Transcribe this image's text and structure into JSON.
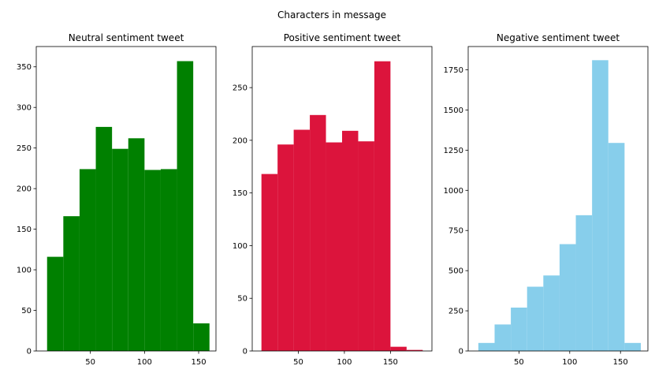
{
  "figure": {
    "suptitle": "Characters in message"
  },
  "chart_data": [
    {
      "type": "histogram",
      "title": "Neutral sentiment tweet",
      "color": "#008000",
      "xlim": [
        0,
        166
      ],
      "ylim": [
        0,
        375
      ],
      "xticks": [
        50,
        100,
        150
      ],
      "yticks": [
        0,
        50,
        100,
        150,
        200,
        250,
        300,
        350
      ],
      "bin_edges": [
        10,
        25,
        40,
        55,
        70,
        85,
        100,
        115,
        130,
        145,
        160
      ],
      "counts": [
        116,
        166,
        224,
        276,
        249,
        262,
        223,
        224,
        357,
        34
      ]
    },
    {
      "type": "histogram",
      "title": "Positive sentiment tweet",
      "color": "#DC143C",
      "xlim": [
        0,
        195
      ],
      "ylim": [
        0,
        289
      ],
      "xticks": [
        50,
        100,
        150
      ],
      "yticks": [
        0,
        50,
        100,
        150,
        200,
        250
      ],
      "bin_edges": [
        10,
        27.5,
        45,
        62.5,
        80,
        97.5,
        115,
        132.5,
        150,
        167.5,
        185
      ],
      "counts": [
        168,
        196,
        210,
        224,
        198,
        209,
        199,
        275,
        4,
        1
      ]
    },
    {
      "type": "histogram",
      "title": "Negative sentiment tweet",
      "color": "#87CEEB",
      "xlim": [
        0,
        177
      ],
      "ylim": [
        0,
        1895
      ],
      "xticks": [
        50,
        100,
        150
      ],
      "yticks": [
        0,
        250,
        500,
        750,
        1000,
        1250,
        1500,
        1750
      ],
      "bin_edges": [
        10,
        26,
        42,
        58,
        74,
        90,
        106,
        122,
        138,
        154,
        170
      ],
      "counts": [
        50,
        165,
        270,
        400,
        470,
        665,
        845,
        1810,
        1295,
        50
      ]
    }
  ]
}
